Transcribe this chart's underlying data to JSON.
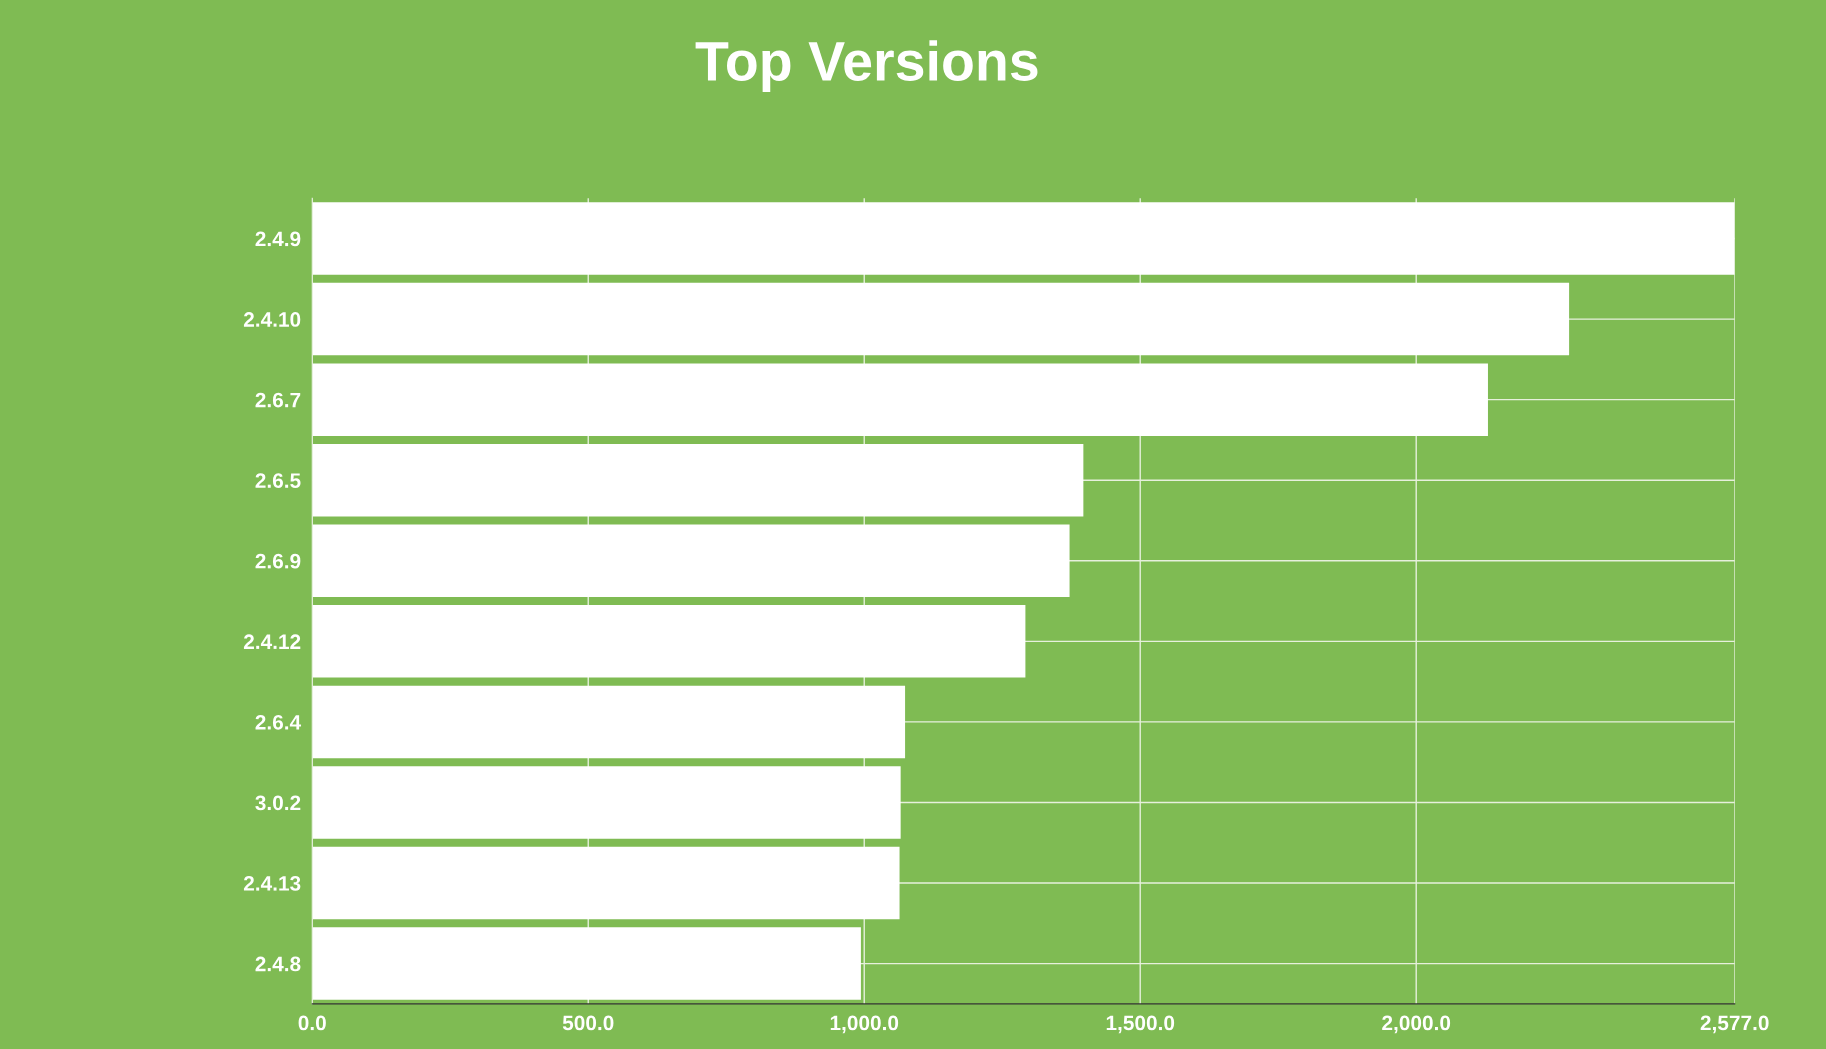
{
  "chart_data": {
    "type": "bar",
    "orientation": "horizontal",
    "title": "Top Versions",
    "categories": [
      "2.4.9",
      "2.4.10",
      "2.6.7",
      "2.6.5",
      "2.6.9",
      "2.4.12",
      "2.6.4",
      "3.0.2",
      "2.4.13",
      "2.4.8"
    ],
    "values": [
      2577,
      2277,
      2130,
      1397,
      1372,
      1292,
      1074,
      1066,
      1064,
      994
    ],
    "color": "#ffffff",
    "xlim": [
      0,
      2577
    ],
    "xticks": [
      {
        "value": 0,
        "label": "0.0"
      },
      {
        "value": 500,
        "label": "500.0"
      },
      {
        "value": 1000,
        "label": "1,000.0"
      },
      {
        "value": 1500,
        "label": "1,500.0"
      },
      {
        "value": 2000,
        "label": "2,000.0"
      },
      {
        "value": 2577,
        "label": "2,577.0"
      }
    ],
    "grid": true
  }
}
